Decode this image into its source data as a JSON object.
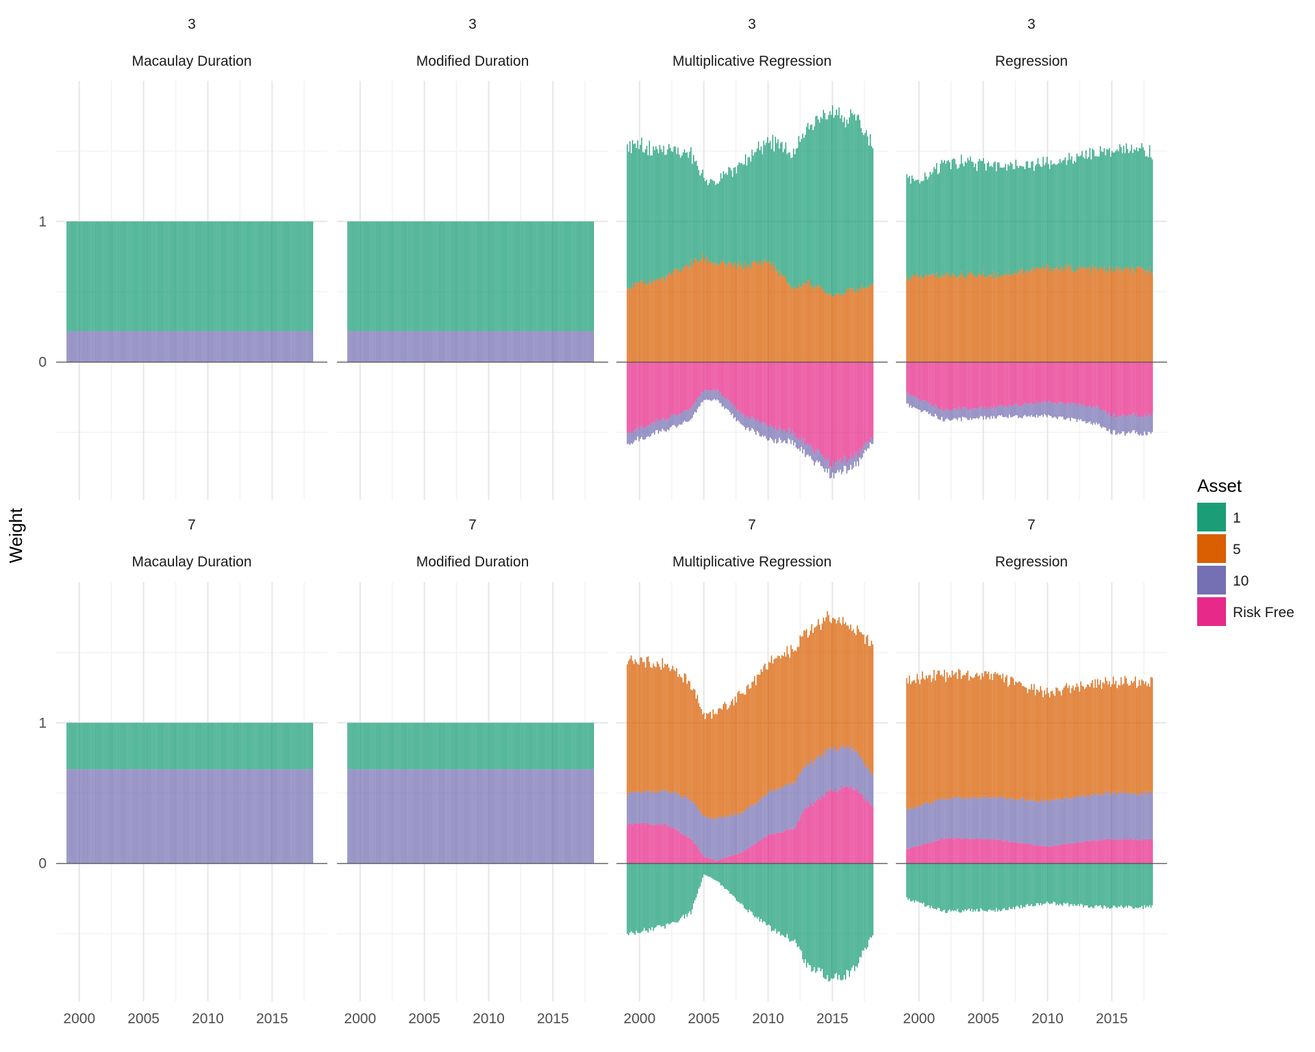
{
  "chart_data": {
    "type": "bar",
    "subtype": "stacked-bar-facet-grid",
    "ylabel": "Weight",
    "xlabel": "",
    "x_ticks": [
      "2000",
      "2005",
      "2010",
      "2015"
    ],
    "y_ticks": [
      "0",
      "1"
    ],
    "x_range": [
      1998.2,
      2019.3
    ],
    "y_range": [
      -0.98,
      2.0
    ],
    "bar_x_range": [
      1999.0,
      2018.2
    ],
    "bar_count": 190,
    "grid": true,
    "legend": {
      "title": "Asset",
      "placement": "right",
      "entries": [
        {
          "key": "1",
          "label": "1",
          "color": "#1b9e77"
        },
        {
          "key": "5",
          "label": "5",
          "color": "#d95f02"
        },
        {
          "key": "10",
          "label": "10",
          "color": "#7570b3"
        },
        {
          "key": "rf",
          "label": "Risk Free",
          "color": "#e7298a"
        }
      ]
    },
    "panels": [
      {
        "id": "p3-macaulay",
        "row": 0,
        "col": 0,
        "strip_top": "3",
        "strip_bottom": "Macaulay Duration",
        "stack_order": [
          "10",
          "1"
        ],
        "series": {
          "10": {
            "x": [
              1999,
              2018.2
            ],
            "y": [
              0.22,
              0.22
            ]
          },
          "1": {
            "x": [
              1999,
              2018.2
            ],
            "y": [
              0.78,
              0.78
            ]
          }
        }
      },
      {
        "id": "p3-modified",
        "row": 0,
        "col": 1,
        "strip_top": "3",
        "strip_bottom": "Modified Duration",
        "stack_order": [
          "10",
          "1"
        ],
        "series": {
          "10": {
            "x": [
              1999,
              2018.2
            ],
            "y": [
              0.22,
              0.22
            ]
          },
          "1": {
            "x": [
              1999,
              2018.2
            ],
            "y": [
              0.78,
              0.78
            ]
          }
        }
      },
      {
        "id": "p3-multiplicative",
        "row": 0,
        "col": 2,
        "strip_top": "3",
        "strip_bottom": "Multiplicative Regression",
        "stack_order": [
          "5",
          "1",
          "rf",
          "10"
        ],
        "series": {
          "5": {
            "x": [
              1999,
              2002,
              2004,
              2005,
              2006,
              2008,
              2010,
              2012,
              2013,
              2015,
              2017,
              2018.2
            ],
            "y": [
              0.53,
              0.6,
              0.7,
              0.74,
              0.7,
              0.68,
              0.72,
              0.52,
              0.57,
              0.48,
              0.52,
              0.54
            ]
          },
          "1": {
            "x": [
              1999,
              2002,
              2004,
              2005,
              2006,
              2008,
              2010,
              2012,
              2013,
              2015,
              2016,
              2017,
              2018.2
            ],
            "y": [
              1.02,
              0.9,
              0.78,
              0.56,
              0.58,
              0.72,
              0.86,
              0.96,
              1.08,
              1.34,
              1.24,
              1.22,
              0.97
            ]
          },
          "rf": {
            "x": [
              1999,
              2002,
              2004,
              2005,
              2006,
              2008,
              2010,
              2012,
              2013,
              2015,
              2017,
              2018.2
            ],
            "y": [
              -0.5,
              -0.4,
              -0.33,
              -0.2,
              -0.2,
              -0.37,
              -0.45,
              -0.5,
              -0.58,
              -0.73,
              -0.65,
              -0.52
            ]
          },
          "10": {
            "x": [
              1999,
              2002,
              2004,
              2005,
              2006,
              2008,
              2010,
              2012,
              2013,
              2015,
              2017,
              2018.2
            ],
            "y": [
              -0.08,
              -0.08,
              -0.08,
              -0.07,
              -0.07,
              -0.08,
              -0.1,
              -0.07,
              -0.08,
              -0.08,
              -0.07,
              -0.03
            ]
          }
        }
      },
      {
        "id": "p3-regression",
        "row": 0,
        "col": 3,
        "strip_top": "3",
        "strip_bottom": "Regression",
        "stack_order": [
          "5",
          "1",
          "rf",
          "10"
        ],
        "series": {
          "5": {
            "x": [
              1999,
              2002,
              2006,
              2010,
              2014,
              2018.2
            ],
            "y": [
              0.6,
              0.62,
              0.62,
              0.67,
              0.66,
              0.65
            ]
          },
          "1": {
            "x": [
              1999,
              2000,
              2002,
              2006,
              2010,
              2013,
              2015,
              2018.2
            ],
            "y": [
              0.74,
              0.67,
              0.8,
              0.79,
              0.74,
              0.8,
              0.85,
              0.85
            ]
          },
          "rf": {
            "x": [
              1999,
              2002,
              2006,
              2010,
              2014,
              2015,
              2018.2
            ],
            "y": [
              -0.22,
              -0.34,
              -0.32,
              -0.28,
              -0.32,
              -0.38,
              -0.38
            ]
          },
          "10": {
            "x": [
              1999,
              2002,
              2006,
              2010,
              2014,
              2015,
              2018.2
            ],
            "y": [
              -0.08,
              -0.07,
              -0.07,
              -0.1,
              -0.12,
              -0.12,
              -0.13
            ]
          }
        }
      },
      {
        "id": "p7-macaulay",
        "row": 1,
        "col": 0,
        "strip_top": "7",
        "strip_bottom": "Macaulay Duration",
        "stack_order": [
          "10",
          "1"
        ],
        "series": {
          "10": {
            "x": [
              1999,
              2018.2
            ],
            "y": [
              0.67,
              0.67
            ]
          },
          "1": {
            "x": [
              1999,
              2018.2
            ],
            "y": [
              0.33,
              0.33
            ]
          }
        }
      },
      {
        "id": "p7-modified",
        "row": 1,
        "col": 1,
        "strip_top": "7",
        "strip_bottom": "Modified Duration",
        "stack_order": [
          "10",
          "1"
        ],
        "series": {
          "10": {
            "x": [
              1999,
              2018.2
            ],
            "y": [
              0.67,
              0.67
            ]
          },
          "1": {
            "x": [
              1999,
              2018.2
            ],
            "y": [
              0.33,
              0.33
            ]
          }
        }
      },
      {
        "id": "p7-multiplicative",
        "row": 1,
        "col": 2,
        "strip_top": "7",
        "strip_bottom": "Multiplicative Regression",
        "stack_order": [
          "rf",
          "10",
          "5",
          "1"
        ],
        "series": {
          "rf": {
            "x": [
              1999,
              2002,
              2004,
              2005,
              2006,
              2008,
              2010,
              2012,
              2013,
              2015,
              2016.5,
              2018.2
            ],
            "y": [
              0.28,
              0.28,
              0.18,
              0.05,
              0.02,
              0.08,
              0.2,
              0.25,
              0.4,
              0.52,
              0.55,
              0.4
            ]
          },
          "10": {
            "x": [
              1999,
              2002,
              2004,
              2005,
              2006,
              2008,
              2010,
              2012,
              2013,
              2015,
              2016.5,
              2018.2
            ],
            "y": [
              0.22,
              0.24,
              0.28,
              0.28,
              0.3,
              0.28,
              0.3,
              0.33,
              0.3,
              0.3,
              0.28,
              0.22
            ]
          },
          "5": {
            "x": [
              1999,
              2002,
              2004,
              2005,
              2006,
              2008,
              2010,
              2012,
              2013,
              2015,
              2016.5,
              2018.2
            ],
            "y": [
              0.95,
              0.9,
              0.82,
              0.72,
              0.76,
              0.84,
              0.92,
              0.95,
              0.95,
              0.93,
              0.85,
              0.93
            ]
          },
          "1": {
            "x": [
              1999,
              2002,
              2004,
              2005,
              2006,
              2008,
              2010,
              2012,
              2013,
              2015,
              2016.5,
              2018.2
            ],
            "y": [
              -0.5,
              -0.45,
              -0.35,
              -0.08,
              -0.12,
              -0.3,
              -0.45,
              -0.55,
              -0.72,
              -0.82,
              -0.78,
              -0.5
            ]
          }
        }
      },
      {
        "id": "p7-regression",
        "row": 1,
        "col": 3,
        "strip_top": "7",
        "strip_bottom": "Regression",
        "stack_order": [
          "rf",
          "10",
          "5",
          "1"
        ],
        "series": {
          "rf": {
            "x": [
              1999,
              2002,
              2006,
              2010,
              2014,
              2018.2
            ],
            "y": [
              0.1,
              0.18,
              0.17,
              0.12,
              0.17,
              0.17
            ]
          },
          "10": {
            "x": [
              1999,
              2002,
              2006,
              2010,
              2014,
              2018.2
            ],
            "y": [
              0.28,
              0.28,
              0.3,
              0.32,
              0.33,
              0.33
            ]
          },
          "5": {
            "x": [
              1999,
              2002,
              2006,
              2010,
              2014,
              2018.2
            ],
            "y": [
              0.92,
              0.88,
              0.86,
              0.77,
              0.78,
              0.8
            ]
          },
          "1": {
            "x": [
              1999,
              2002,
              2006,
              2010,
              2014,
              2018.2
            ],
            "y": [
              -0.25,
              -0.34,
              -0.33,
              -0.28,
              -0.31,
              -0.31
            ]
          }
        }
      }
    ]
  }
}
